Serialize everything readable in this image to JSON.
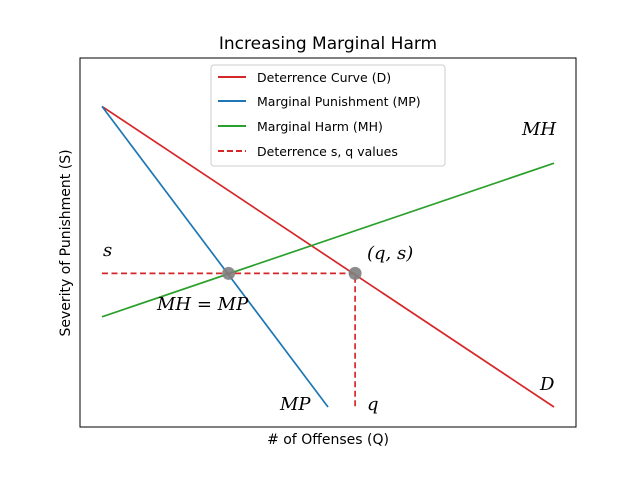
{
  "chart_data": {
    "type": "line",
    "title": "Increasing Marginal Harm",
    "xlabel": "# of Offenses (Q)",
    "ylabel": "Severity of Punishment (S)",
    "xlim": [
      0,
      10
    ],
    "ylim": [
      0,
      10
    ],
    "xticks": false,
    "yticks": false,
    "grid": false,
    "legend_position": "top-center",
    "series": [
      {
        "name": "Deterrence Curve (D)",
        "color": "#d62728",
        "style": "solid",
        "x": [
          0,
          10
        ],
        "y": [
          9,
          0
        ]
      },
      {
        "name": "Marginal Punishment (MP)",
        "color": "#1f77b4",
        "style": "solid",
        "x": [
          0,
          5
        ],
        "y": [
          9,
          0
        ]
      },
      {
        "name": "Marginal Harm (MH)",
        "color": "#2ca02c",
        "style": "solid",
        "x": [
          0,
          10
        ],
        "y": [
          2.7,
          7.3
        ]
      },
      {
        "name": "Deterrence s, q values",
        "color": "#d62728",
        "style": "dashed",
        "x": [
          0,
          5.6,
          5.6
        ],
        "y": [
          4,
          4,
          0
        ]
      }
    ],
    "points": [
      {
        "x": 2.8,
        "y": 4,
        "color": "#7f7f7f"
      },
      {
        "x": 5.6,
        "y": 4,
        "color": "#7f7f7f"
      }
    ],
    "annotations": {
      "s": "s",
      "q": "q",
      "qs": "(q, s)",
      "mh_eq_mp": "MH = MP",
      "mp": "MP",
      "mh": "MH",
      "d": "D"
    },
    "legend": {
      "deterrence": "Deterrence Curve (D)",
      "mp": "Marginal Punishment (MP)",
      "mh": "Marginal Harm (MH)",
      "sq": "Deterrence s, q values"
    }
  }
}
